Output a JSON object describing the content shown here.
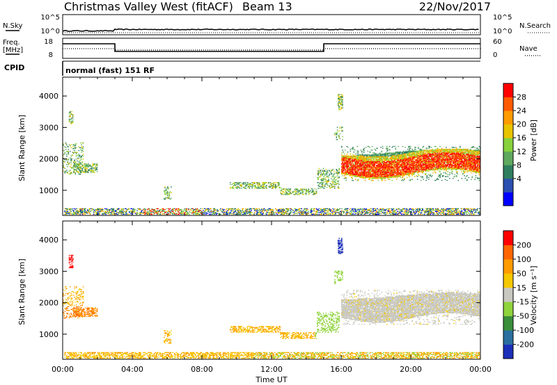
{
  "header": {
    "title": "Christmas Valley West (fitACF)",
    "beam": "Beam 13",
    "date": "22/Nov/2017"
  },
  "strips": {
    "nsky_label": "N.Sky",
    "nsky_ticks": [
      "10^5",
      "10^0"
    ],
    "nsearch_label": "N.Search",
    "nsearch_ticks": [
      "10^5",
      "10^0"
    ],
    "freq_label_1": "Freq.",
    "freq_label_2": "[MHz]",
    "freq_ticks": [
      "18",
      "8"
    ],
    "nave_label": "Nave",
    "nave_ticks": [
      "60",
      "0"
    ],
    "cpid_label": "CPID",
    "cpid_text": "normal (fast) 151 RF"
  },
  "chart_data": [
    {
      "type": "heatmap",
      "title": "",
      "ylabel": "Slant Range [km]",
      "xlabel": "",
      "yticks": [
        "4000",
        "3000",
        "2000",
        "1000"
      ],
      "ytick_values": [
        4000,
        3000,
        2000,
        1000
      ],
      "ylim": [
        200,
        4600
      ],
      "xlim": [
        0,
        24
      ],
      "colorbar": {
        "label": "Power [dB]",
        "ticks": [
          "28",
          "24",
          "20",
          "16",
          "12",
          "8",
          "4"
        ],
        "colors": [
          "#0000ff",
          "#2a4fb0",
          "#2f7f5f",
          "#5fa95f",
          "#86d13c",
          "#e8c400",
          "#ff9b00",
          "#ff5a00",
          "#ff0000"
        ]
      }
    },
    {
      "type": "heatmap",
      "title": "",
      "ylabel": "Slant Range [km]",
      "xlabel": "Time UT",
      "yticks": [
        "4000",
        "3000",
        "2000",
        "1000"
      ],
      "ytick_values": [
        4000,
        3000,
        2000,
        1000
      ],
      "ylim": [
        200,
        4600
      ],
      "xlim": [
        0,
        24
      ],
      "xticks": [
        "00:00",
        "04:00",
        "08:00",
        "12:00",
        "16:00",
        "20:00",
        "00:00"
      ],
      "xtick_values": [
        0,
        4,
        8,
        12,
        16,
        20,
        24
      ],
      "colorbar": {
        "label": "Velocity [m s⁻¹]",
        "ticks": [
          "200",
          "100",
          "50",
          "15",
          "-15",
          "-50",
          "-100",
          "-200"
        ],
        "colors": [
          "#1c2fb8",
          "#2a6fa0",
          "#3a8f3a",
          "#8fd43c",
          "#c8c8c0",
          "#f5c800",
          "#ff9b00",
          "#ff6600",
          "#ff0000"
        ]
      }
    }
  ]
}
